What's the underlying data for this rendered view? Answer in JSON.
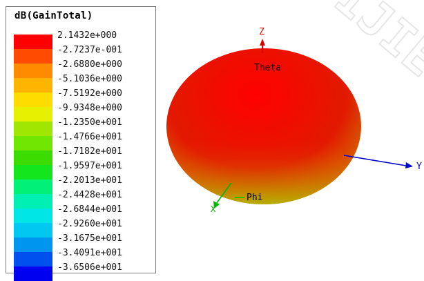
{
  "legend": {
    "title": "dB(GainTotal)",
    "entries": [
      {
        "label": "2.1432e+000",
        "color": "#ff0000"
      },
      {
        "label": "-2.7237e-001",
        "color": "#ff4b00"
      },
      {
        "label": "-2.6880e+000",
        "color": "#ff8c00"
      },
      {
        "label": "-5.1036e+000",
        "color": "#ffb400"
      },
      {
        "label": "-7.5192e+000",
        "color": "#ffdc00"
      },
      {
        "label": "-9.9348e+000",
        "color": "#e6f000"
      },
      {
        "label": "-1.2350e+001",
        "color": "#a0e600"
      },
      {
        "label": "-1.4766e+001",
        "color": "#6ee600"
      },
      {
        "label": "-1.7182e+001",
        "color": "#3cdc00"
      },
      {
        "label": "-1.9597e+001",
        "color": "#14e61e"
      },
      {
        "label": "-2.2013e+001",
        "color": "#00f078"
      },
      {
        "label": "-2.4428e+001",
        "color": "#00f0b4"
      },
      {
        "label": "-2.6844e+001",
        "color": "#00e6e6"
      },
      {
        "label": "-2.9260e+001",
        "color": "#00c8f0"
      },
      {
        "label": "-3.1675e+001",
        "color": "#0096f0"
      },
      {
        "label": "-3.4091e+001",
        "color": "#0050f0"
      },
      {
        "label": "-3.6506e+001",
        "color": "#0000f0"
      }
    ]
  },
  "axes": {
    "z": {
      "label": "Z",
      "color": "#e00000"
    },
    "y": {
      "label": "Y",
      "color": "#0000cc"
    },
    "x": {
      "label": "X",
      "color": "#00b400"
    },
    "theta_label": "Theta",
    "phi_label": "Phi"
  },
  "pattern": {
    "top_color": "#ff0000",
    "mid_color": "#e11a00",
    "bottom_color": "#c8a000"
  },
  "watermark": {
    "text": "IJIE",
    "color": "#e8e8e8"
  }
}
